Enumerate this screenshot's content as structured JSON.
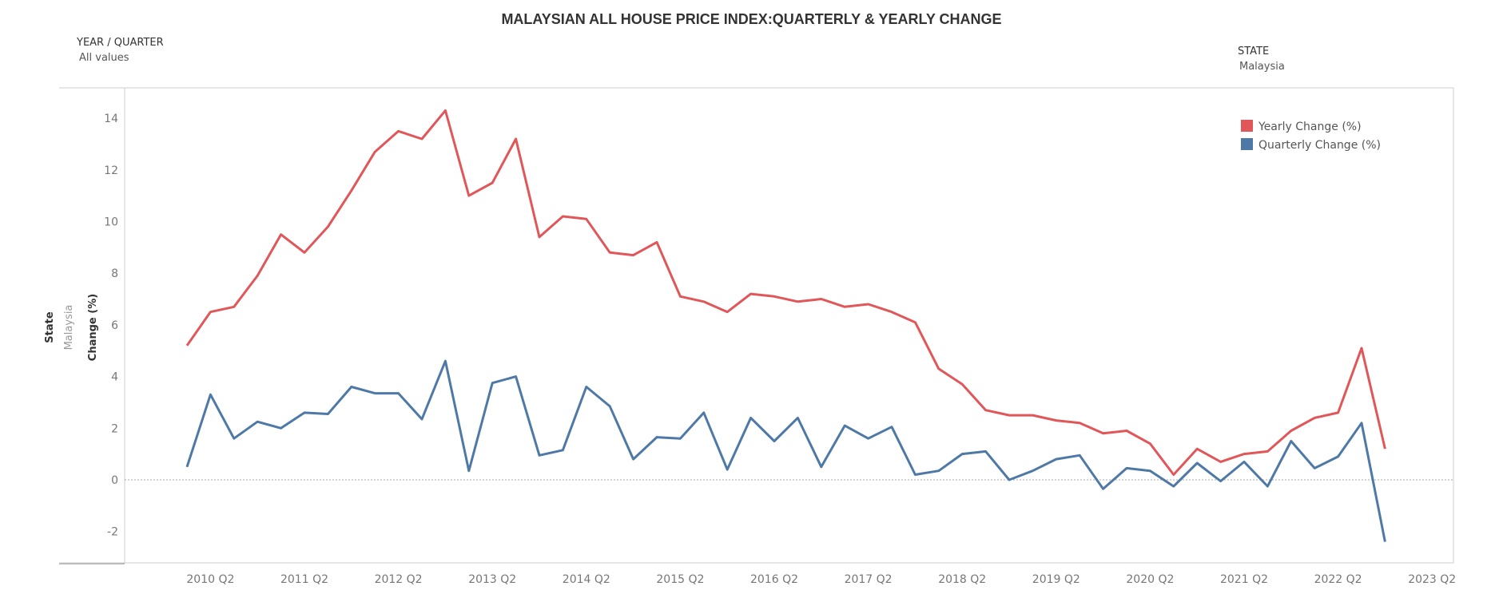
{
  "title": "MALAYSIAN ALL HOUSE PRICE INDEX:QUARTERLY & YEARLY CHANGE",
  "filters": {
    "year_quarter": {
      "label": "YEAR / QUARTER",
      "value": "All values"
    },
    "state": {
      "label": "STATE",
      "value": "Malaysia"
    }
  },
  "chart_data": {
    "type": "line",
    "title": "MALAYSIAN ALL HOUSE PRICE INDEX:QUARTERLY & YEARLY CHANGE",
    "ylabel_parts": [
      "State",
      "Malaysia",
      "Change (%)"
    ],
    "ylim": [
      -3.2,
      15.2
    ],
    "yticks": [
      -2,
      0,
      2,
      4,
      6,
      8,
      10,
      12,
      14
    ],
    "xticks": [
      "2010 Q2",
      "2011 Q2",
      "2012 Q2",
      "2013 Q2",
      "2014 Q2",
      "2015 Q2",
      "2016 Q2",
      "2017 Q2",
      "2018 Q2",
      "2019 Q2",
      "2020 Q2",
      "2021 Q2",
      "2022 Q2",
      "2023 Q2"
    ],
    "x_start": "2010 Q1",
    "x_end": "2022 Q4",
    "zero_line": true,
    "grid": false,
    "legend_position": "top-right",
    "series": [
      {
        "name": "Yearly Change (%)",
        "color": "#e15759",
        "values": [
          5.2,
          6.5,
          6.7,
          7.9,
          9.5,
          8.8,
          9.8,
          11.2,
          12.7,
          13.5,
          13.2,
          14.3,
          11.0,
          11.5,
          13.2,
          9.4,
          10.2,
          10.1,
          8.8,
          8.7,
          9.2,
          7.1,
          6.9,
          6.5,
          7.2,
          7.1,
          6.9,
          7.0,
          6.7,
          6.8,
          6.5,
          6.1,
          4.3,
          3.7,
          2.7,
          2.5,
          2.5,
          2.3,
          2.2,
          1.8,
          1.9,
          1.4,
          0.2,
          1.2,
          0.7,
          1.0,
          1.1,
          1.9,
          2.4,
          2.6,
          5.1,
          1.2
        ]
      },
      {
        "name": "Quarterly Change (%)",
        "color": "#4e79a7",
        "values": [
          0.5,
          3.3,
          1.6,
          2.25,
          2.0,
          2.6,
          2.55,
          3.6,
          3.35,
          3.35,
          2.35,
          4.6,
          0.35,
          3.75,
          4.0,
          0.95,
          1.15,
          3.6,
          2.85,
          0.8,
          1.65,
          1.6,
          2.6,
          0.4,
          2.4,
          1.5,
          2.4,
          0.5,
          2.1,
          1.6,
          2.05,
          0.2,
          0.35,
          1.0,
          1.1,
          0.0,
          0.35,
          0.8,
          0.95,
          -0.35,
          0.45,
          0.35,
          -0.25,
          0.65,
          -0.05,
          0.7,
          -0.25,
          1.5,
          0.45,
          0.9,
          2.2,
          -2.4
        ]
      }
    ]
  }
}
